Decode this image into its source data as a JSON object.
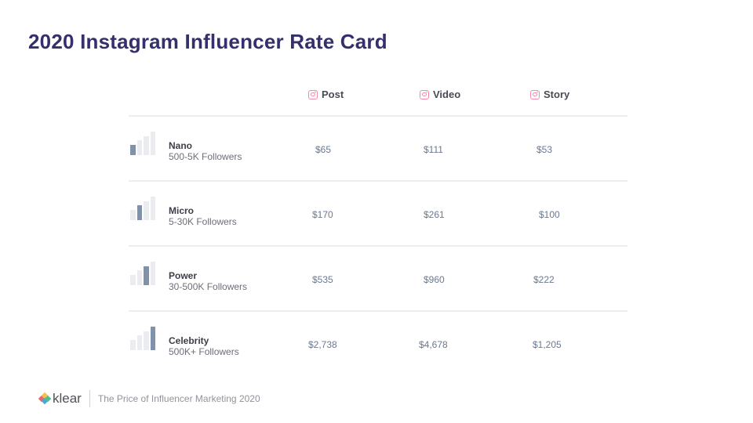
{
  "title": "2020 Instagram Influencer Rate Card",
  "columns": [
    "Post",
    "Video",
    "Story"
  ],
  "tiers": [
    {
      "name": "Nano",
      "followers": "500-5K Followers",
      "level": 1,
      "post": "$65",
      "video": "$111",
      "story": "$53"
    },
    {
      "name": "Micro",
      "followers": "5-30K Followers",
      "level": 2,
      "post": "$170",
      "video": "$261",
      "story": "$100"
    },
    {
      "name": "Power",
      "followers": "30-500K Followers",
      "level": 3,
      "post": "$535",
      "video": "$960",
      "story": "$222"
    },
    {
      "name": "Celebrity",
      "followers": "500K+ Followers",
      "level": 4,
      "post": "$2,738",
      "video": "$4,678",
      "story": "$1,205"
    }
  ],
  "footer": {
    "brand": "klear",
    "tagline": "The Price of Influencer Marketing 2020"
  },
  "colors": {
    "title": "#33306b",
    "instagram_icon": "#f08aa8",
    "bar_active": "#8092a9",
    "bar_inactive": "#ebecef"
  },
  "icons": {
    "column": "instagram-icon",
    "tier": "signal-bars-icon",
    "brand": "klear-logo-icon"
  }
}
